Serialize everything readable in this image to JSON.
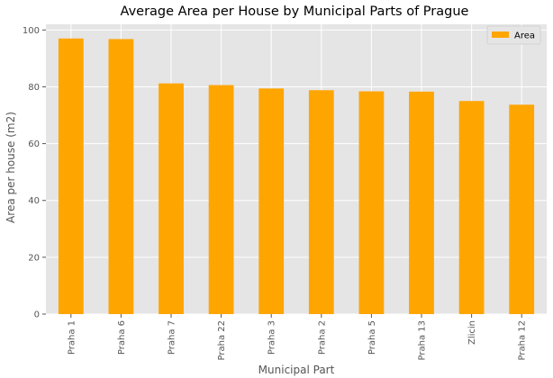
{
  "chart_data": {
    "type": "bar",
    "title": "Average Area per House by Municipal Parts of Prague",
    "xlabel": "Municipal Part",
    "ylabel": "Area per house (m2)",
    "categories": [
      "Praha 1",
      "Praha 6",
      "Praha 7",
      "Praha 22",
      "Praha 3",
      "Praha 2",
      "Praha 5",
      "Praha 13",
      "Zlicin",
      "Praha 12"
    ],
    "series": [
      {
        "name": "Area",
        "values": [
          97.0,
          96.8,
          81.2,
          80.6,
          79.4,
          78.8,
          78.4,
          78.3,
          75.0,
          73.7
        ]
      }
    ],
    "ylim": [
      0,
      102
    ],
    "yticks": [
      0,
      20,
      40,
      60,
      80,
      100
    ],
    "grid": true,
    "legend": "top-right",
    "colors": {
      "bar": "#ffa500",
      "plot_bg": "#e5e5e5",
      "grid": "#ffffff"
    }
  }
}
